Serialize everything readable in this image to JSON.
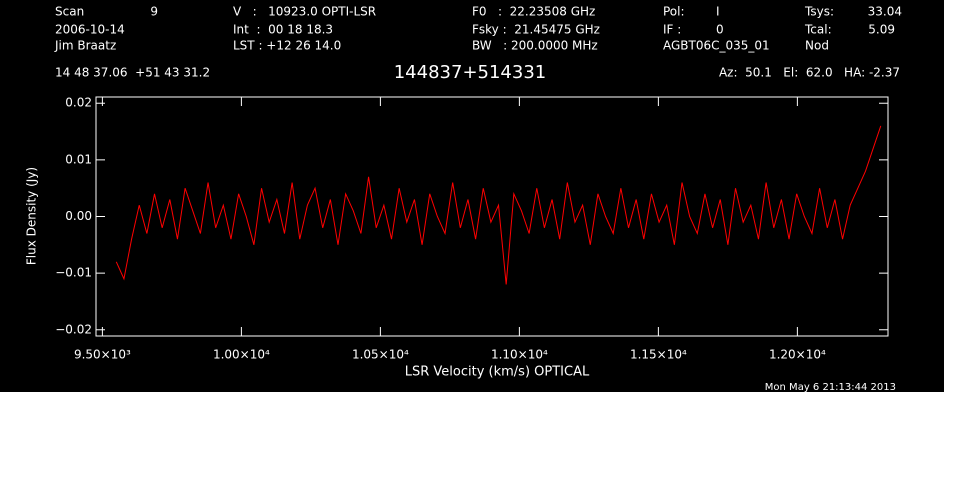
{
  "header": {
    "items": [
      "Scan",
      "9",
      "V   :   10923.0 OPTI-LSR",
      "F0   :  22.23508 GHz",
      "Pol:",
      "I",
      "Tsys:",
      "33.04",
      "2006-10-14",
      "Int  :  00 18 18.3",
      "Fsky :  21.45475 GHz",
      "IF :",
      "0",
      "Tcal:",
      "5.09",
      "Jim Braatz",
      "LST : +12 26 14.0",
      "BW   : 200.0000 MHz",
      "AGBT06C_035_01",
      "Nod",
      "14 48 37.06  +51 43 31.2",
      "Az:  50.1   El:  62.0   HA: -2.37"
    ],
    "timestamp": "Mon May  6 21:13:44 2013"
  },
  "chart_data": {
    "type": "line",
    "title": "144837+514331",
    "x_label": "LSR Velocity (km/s) OPTICAL",
    "y_label": "Flux Density (Jy)",
    "xlim": [
      9477,
      12326
    ],
    "ylim": [
      -0.0211,
      0.0211
    ],
    "xticks": [
      {
        "value": 9500,
        "label": "9.50×10³"
      },
      {
        "value": 10000,
        "label": "1.00×10⁴"
      },
      {
        "value": 10500,
        "label": "1.05×10⁴"
      },
      {
        "value": 11000,
        "label": "1.10×10⁴"
      },
      {
        "value": 11500,
        "label": "1.15×10⁴"
      },
      {
        "value": 12000,
        "label": "1.20×10⁴"
      }
    ],
    "yticks": [
      {
        "value": -0.02,
        "label": "−0.02"
      },
      {
        "value": -0.01,
        "label": "−0.01"
      },
      {
        "value": 0,
        "label": "0.00"
      },
      {
        "value": 0.01,
        "label": "0.01"
      },
      {
        "value": 0.02,
        "label": "0.02"
      }
    ],
    "series": [
      {
        "color": "#ff0000",
        "x": [
          9550,
          9577.5,
          9605,
          9632.5,
          9660,
          9687.5,
          9715,
          9742.5,
          9770,
          9797.5,
          9825,
          9852.5,
          9880,
          9907.5,
          9935,
          9962.5,
          9990,
          10017.5,
          10045,
          10072.5,
          10100,
          10127.5,
          10155,
          10182.5,
          10210,
          10237.5,
          10265,
          10292.5,
          10320,
          10347.5,
          10375,
          10402.5,
          10430,
          10457.5,
          10485,
          10512.5,
          10540,
          10567.5,
          10595,
          10622.5,
          10650,
          10677.5,
          10705,
          10732.5,
          10760,
          10787.5,
          10815,
          10842.5,
          10870,
          10897.5,
          10925,
          10952.5,
          10980,
          11007.5,
          11035,
          11062.5,
          11090,
          11117.5,
          11145,
          11172.5,
          11200,
          11227.5,
          11255,
          11282.5,
          11310,
          11337.5,
          11365,
          11392.5,
          11420,
          11447.5,
          11475,
          11502.5,
          11530,
          11557.5,
          11585,
          11612.5,
          11640,
          11667.5,
          11695,
          11722.5,
          11750,
          11777.5,
          11805,
          11832.5,
          11860,
          11887.5,
          11915,
          11942.5,
          11970,
          11997.5,
          12025,
          12052.5,
          12080,
          12107.5,
          12135,
          12162.5,
          12190,
          12217.5,
          12245,
          12272.5,
          12300
        ],
        "values": [
          -0.008,
          -0.011,
          -0.004,
          0.002,
          -0.003,
          0.004,
          -0.002,
          0.003,
          -0.004,
          0.005,
          0.001,
          -0.003,
          0.006,
          -0.002,
          0.002,
          -0.004,
          0.004,
          0.0,
          -0.005,
          0.005,
          -0.001,
          0.003,
          -0.003,
          0.006,
          -0.004,
          0.002,
          0.005,
          -0.002,
          0.003,
          -0.005,
          0.004,
          0.001,
          -0.003,
          0.007,
          -0.002,
          0.002,
          -0.004,
          0.005,
          -0.001,
          0.003,
          -0.005,
          0.004,
          0.0,
          -0.003,
          0.006,
          -0.002,
          0.003,
          -0.004,
          0.005,
          -0.001,
          0.002,
          -0.012,
          0.004,
          0.001,
          -0.003,
          0.005,
          -0.002,
          0.003,
          -0.004,
          0.006,
          -0.001,
          0.002,
          -0.005,
          0.004,
          0.0,
          -0.003,
          0.005,
          -0.002,
          0.003,
          -0.004,
          0.004,
          -0.001,
          0.002,
          -0.005,
          0.006,
          0.0,
          -0.003,
          0.004,
          -0.002,
          0.003,
          -0.005,
          0.005,
          -0.001,
          0.002,
          -0.004,
          0.006,
          -0.002,
          0.003,
          -0.004,
          0.004,
          0.0,
          -0.003,
          0.005,
          -0.002,
          0.003,
          -0.004,
          0.002,
          0.005,
          0.008,
          0.012,
          0.016
        ]
      }
    ]
  }
}
